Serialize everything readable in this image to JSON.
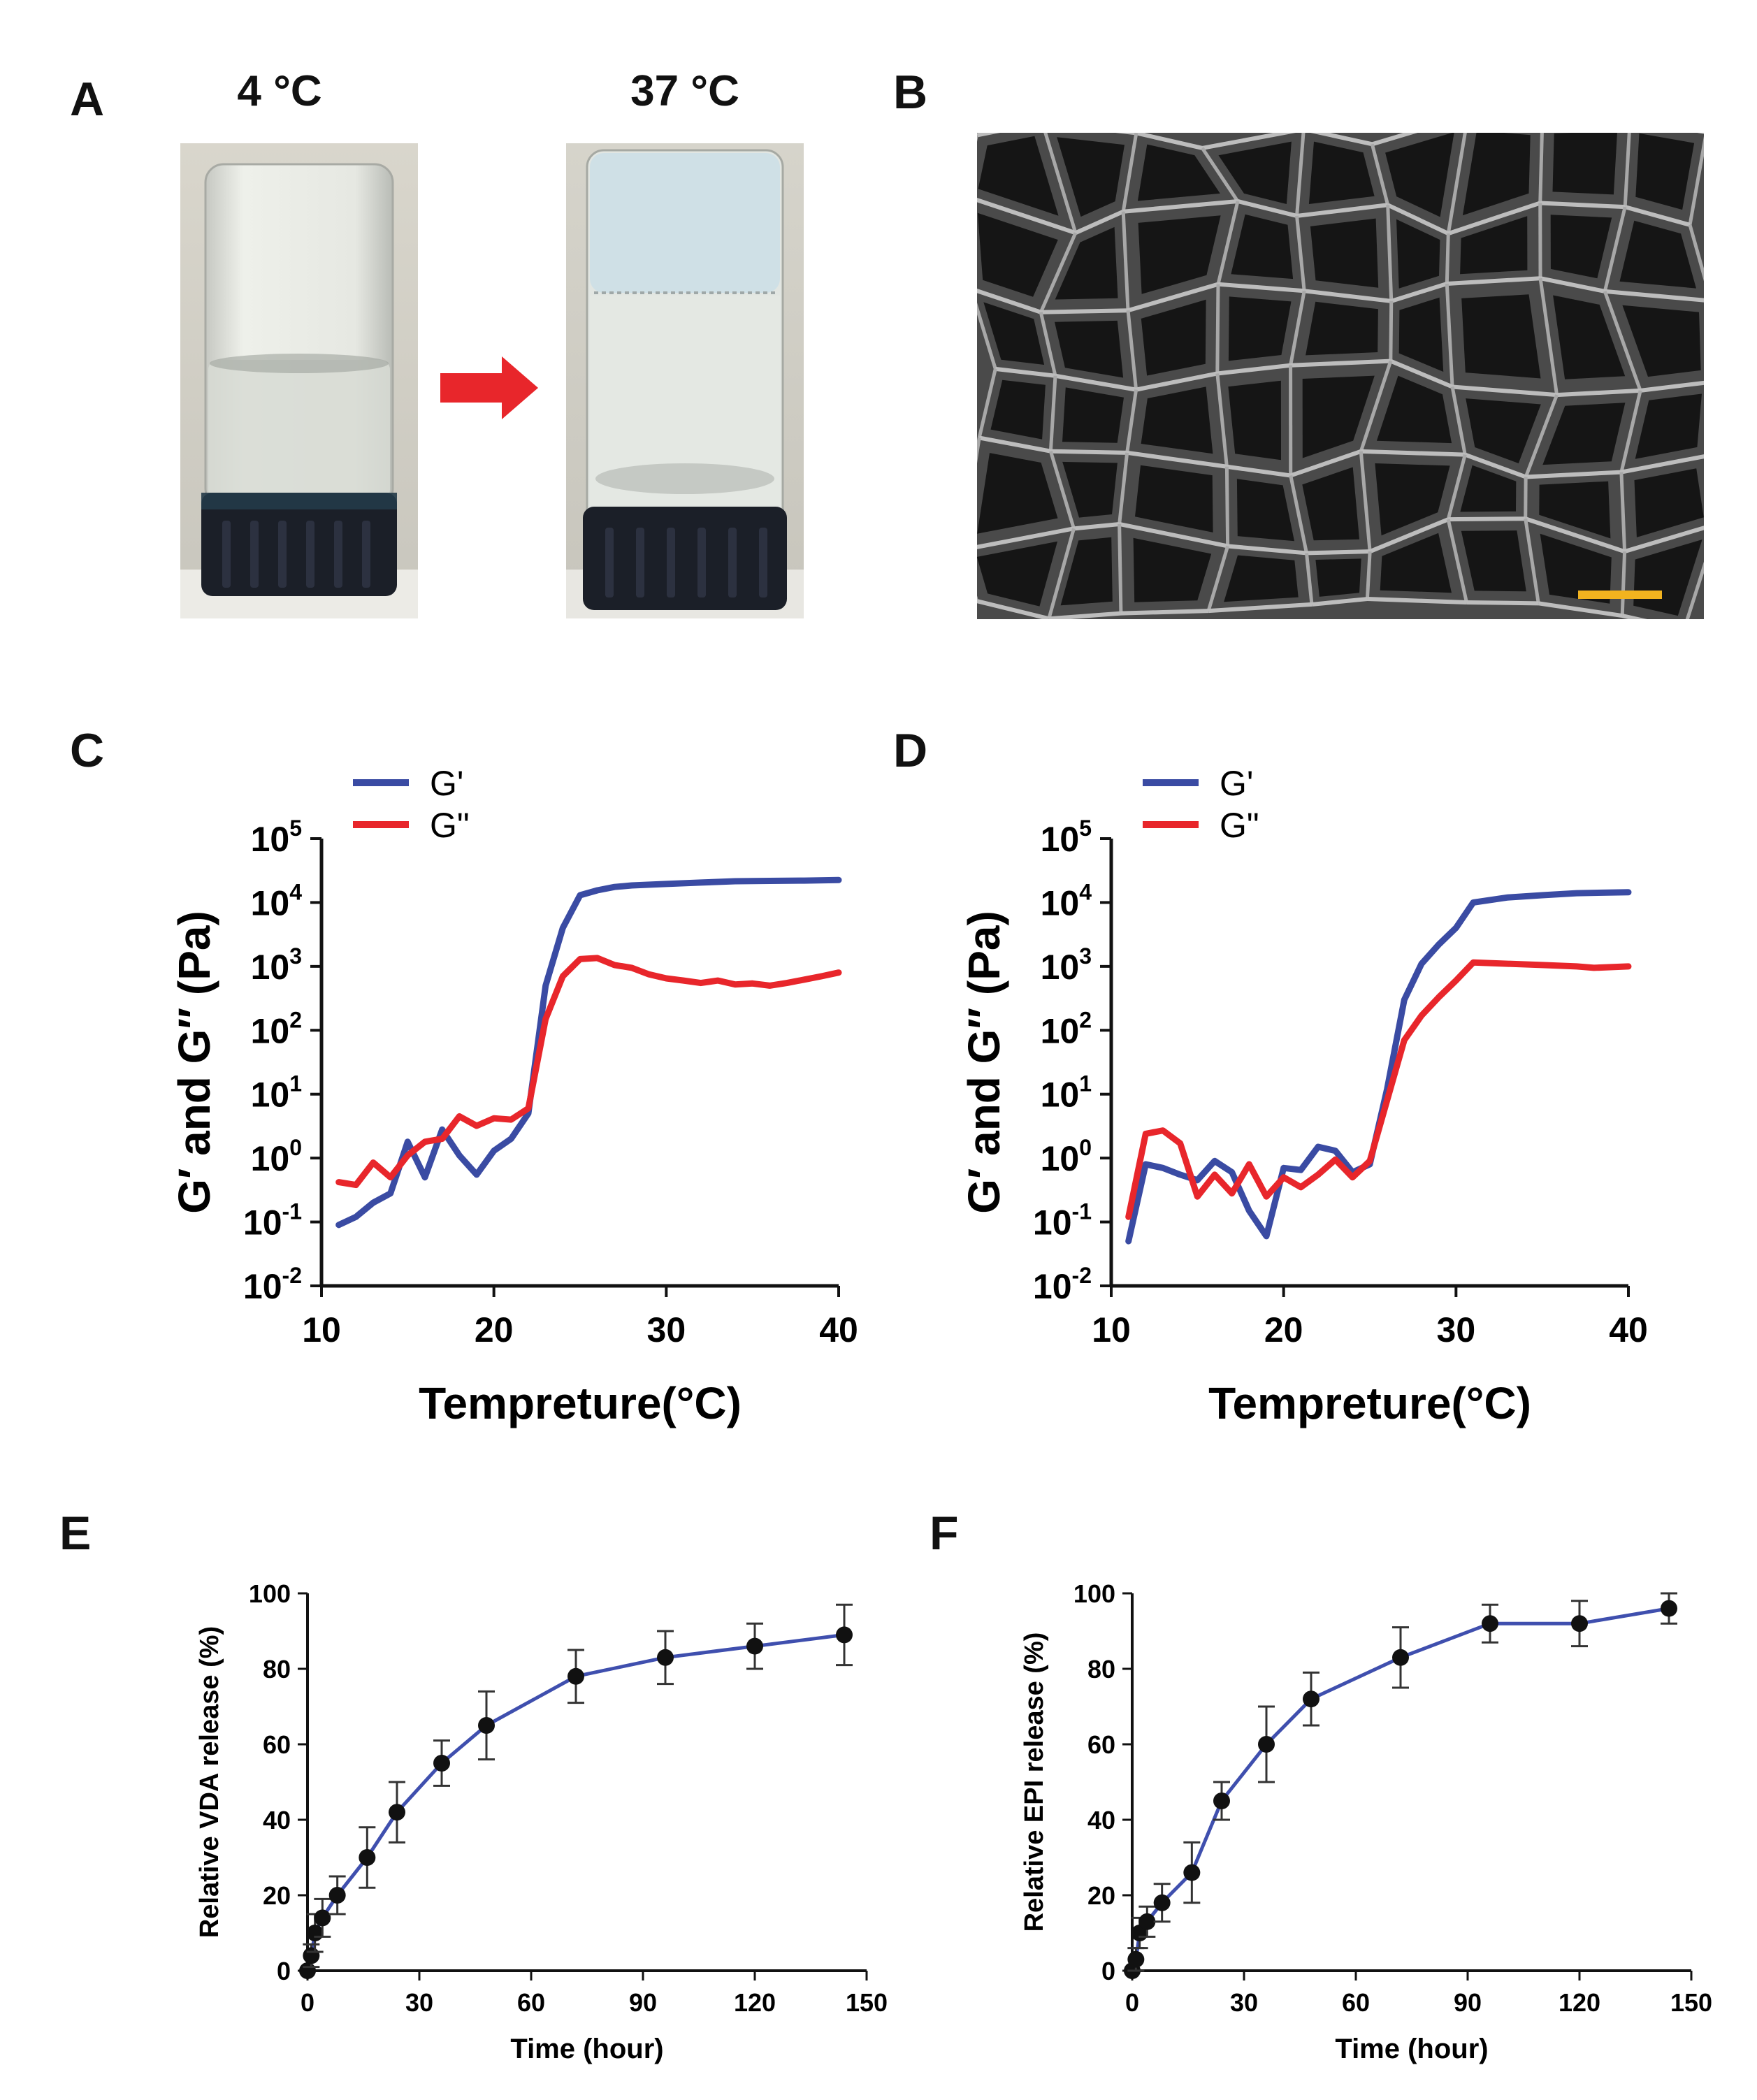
{
  "figure": {
    "panel_labels": [
      "A",
      "B",
      "C",
      "D",
      "E",
      "F"
    ],
    "panel_a": {
      "cold_label": "4 °C",
      "warm_label": "37 °C",
      "arrow_color": "#e8262b"
    },
    "panel_b": {
      "scale_bar_color": "#f2b31f"
    }
  },
  "colors": {
    "g_prime": "#3a4ba3",
    "g_double_prime": "#e8262b",
    "release_line": "#3f4fae",
    "marker": "#111111"
  },
  "chart_data": [
    {
      "id": "C",
      "type": "line",
      "xlabel": "Tempreture(°C)",
      "ylabel": "G′ and G″ (Pa)",
      "xlim": [
        10,
        40
      ],
      "x_ticks": [
        10,
        20,
        30,
        40
      ],
      "yscale": "log",
      "ylim": [
        0.01,
        100000
      ],
      "y_tick_bases": [
        "10",
        "10",
        "10",
        "10",
        "10",
        "10",
        "10",
        "10"
      ],
      "y_tick_exps": [
        "-2",
        "-1",
        "0",
        "1",
        "2",
        "3",
        "4",
        "5"
      ],
      "legend_position": "top-left",
      "series": [
        {
          "name": "G'",
          "color": "#3a4ba3",
          "x": [
            11,
            12,
            13,
            14,
            15,
            16,
            17,
            18,
            19,
            20,
            21,
            22,
            23,
            24,
            25,
            26,
            27,
            28,
            30,
            32,
            34,
            36,
            38,
            40
          ],
          "y": [
            0.09,
            0.12,
            0.2,
            0.28,
            1.8,
            0.5,
            2.8,
            1.1,
            0.55,
            1.3,
            2.0,
            5.0,
            500,
            4000,
            13000,
            15500,
            17500,
            18500,
            19500,
            20500,
            21500,
            21800,
            22000,
            22500
          ]
        },
        {
          "name": "G\"",
          "color": "#e8262b",
          "x": [
            11,
            12,
            13,
            14,
            15,
            16,
            17,
            18,
            19,
            20,
            21,
            22,
            23,
            24,
            25,
            26,
            27,
            28,
            29,
            30,
            31,
            32,
            33,
            34,
            35,
            36,
            37,
            38,
            39,
            40
          ],
          "y": [
            0.42,
            0.38,
            0.85,
            0.5,
            1.1,
            1.8,
            2.0,
            4.5,
            3.2,
            4.2,
            4.0,
            6.0,
            150,
            700,
            1300,
            1350,
            1050,
            950,
            750,
            650,
            600,
            550,
            600,
            520,
            540,
            500,
            550,
            620,
            700,
            800
          ]
        }
      ]
    },
    {
      "id": "D",
      "type": "line",
      "xlabel": "Tempreture(°C)",
      "ylabel": "G′ and G″ (Pa)",
      "xlim": [
        10,
        40
      ],
      "x_ticks": [
        10,
        20,
        30,
        40
      ],
      "yscale": "log",
      "ylim": [
        0.01,
        100000
      ],
      "y_tick_bases": [
        "10",
        "10",
        "10",
        "10",
        "10",
        "10",
        "10",
        "10"
      ],
      "y_tick_exps": [
        "-2",
        "-1",
        "0",
        "1",
        "2",
        "3",
        "4",
        "5"
      ],
      "legend_position": "top-left",
      "series": [
        {
          "name": "G'",
          "color": "#3a4ba3",
          "x": [
            11,
            12,
            13,
            14,
            15,
            16,
            17,
            18,
            19,
            20,
            21,
            22,
            23,
            24,
            25,
            26,
            27,
            28,
            29,
            30,
            31,
            33,
            35,
            37,
            40
          ],
          "y": [
            0.05,
            0.8,
            0.7,
            0.55,
            0.45,
            0.9,
            0.6,
            0.15,
            0.06,
            0.7,
            0.65,
            1.5,
            1.3,
            0.6,
            0.8,
            12,
            300,
            1100,
            2200,
            4000,
            10000,
            12000,
            13000,
            14000,
            14500
          ]
        },
        {
          "name": "G\"",
          "color": "#e8262b",
          "x": [
            11,
            12,
            13,
            14,
            15,
            16,
            17,
            18,
            19,
            20,
            21,
            22,
            23,
            24,
            25,
            26,
            27,
            28,
            29,
            30,
            31,
            33,
            35,
            37,
            38,
            40
          ],
          "y": [
            0.12,
            2.4,
            2.7,
            1.7,
            0.25,
            0.55,
            0.28,
            0.8,
            0.25,
            0.5,
            0.35,
            0.55,
            0.95,
            0.5,
            0.9,
            8,
            70,
            170,
            330,
            600,
            1150,
            1100,
            1050,
            1000,
            950,
            1000
          ]
        }
      ]
    },
    {
      "id": "E",
      "type": "line",
      "xlabel": "Time (hour)",
      "ylabel": "Relative VDA release (%)",
      "xlim": [
        0,
        150
      ],
      "x_ticks": [
        0,
        30,
        60,
        90,
        120,
        150
      ],
      "ylim": [
        0,
        100
      ],
      "y_ticks": [
        0,
        20,
        40,
        60,
        80,
        100
      ],
      "series": [
        {
          "name": "VDA",
          "color": "#3f4fae",
          "x": [
            0,
            1,
            2,
            4,
            8,
            16,
            24,
            36,
            48,
            72,
            96,
            120,
            144
          ],
          "y": [
            0,
            4,
            10,
            14,
            20,
            30,
            42,
            55,
            65,
            78,
            83,
            86,
            89
          ],
          "err": [
            0,
            3,
            5,
            5,
            5,
            8,
            8,
            6,
            9,
            7,
            7,
            6,
            8
          ]
        }
      ]
    },
    {
      "id": "F",
      "type": "line",
      "xlabel": "Time (hour)",
      "ylabel": "Relative EPI release (%)",
      "xlim": [
        0,
        150
      ],
      "x_ticks": [
        0,
        30,
        60,
        90,
        120,
        150
      ],
      "ylim": [
        0,
        100
      ],
      "y_ticks": [
        0,
        20,
        40,
        60,
        80,
        100
      ],
      "series": [
        {
          "name": "EPI",
          "color": "#3f4fae",
          "x": [
            0,
            1,
            2,
            4,
            8,
            16,
            24,
            36,
            48,
            72,
            96,
            120,
            144
          ],
          "y": [
            0,
            3,
            10,
            13,
            18,
            26,
            45,
            60,
            72,
            83,
            92,
            92,
            96
          ],
          "err": [
            0,
            3,
            4,
            4,
            5,
            8,
            5,
            10,
            7,
            8,
            5,
            6,
            4
          ]
        }
      ]
    }
  ]
}
